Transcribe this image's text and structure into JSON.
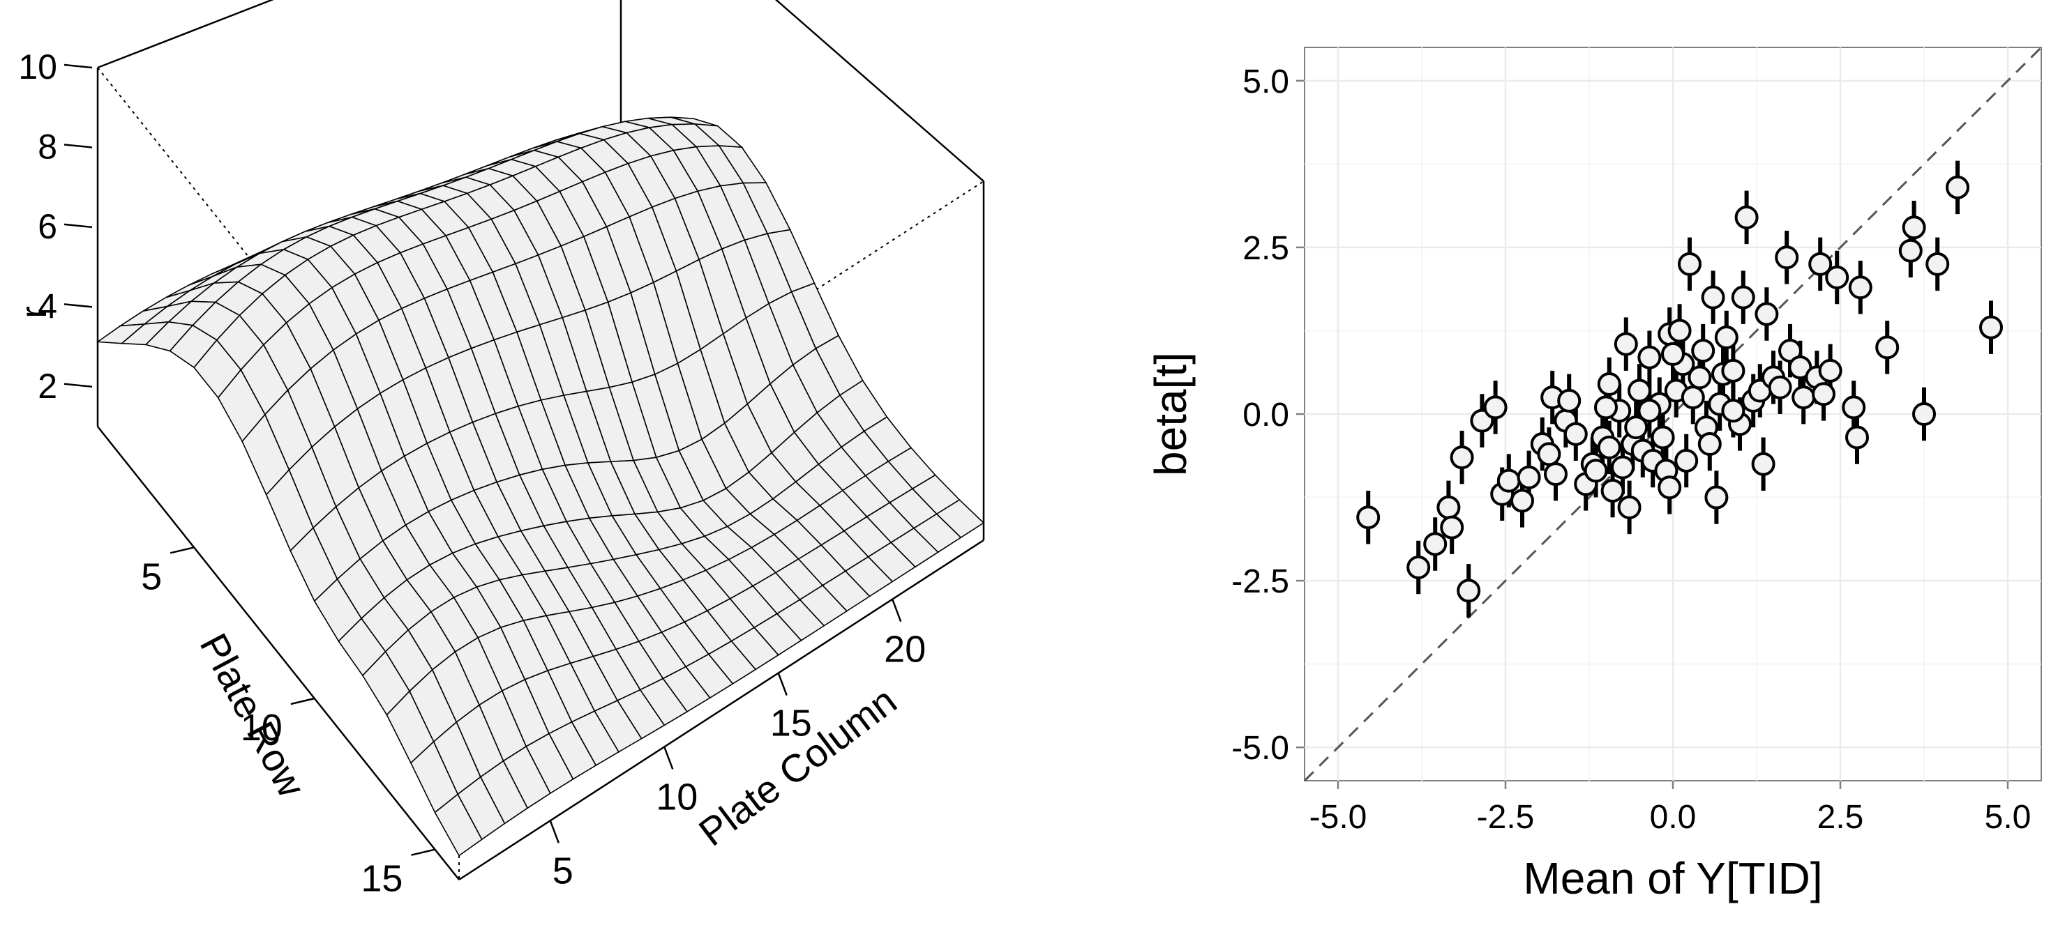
{
  "colors": {
    "surface_fill": "#f0f0f0",
    "panel_background": "#ffffff",
    "grid_major": "#ebebeb",
    "grid_minor": "#f5f5f5",
    "point_fill": "#f2f2f2",
    "point_stroke": "#000000",
    "identity_line": "#555555"
  },
  "chart_data": [
    {
      "type": "surface",
      "zlabel": "r",
      "xlabel": "Plate Row",
      "ylabel": "Plate Column",
      "row_ticks": [
        "5",
        "10",
        "15"
      ],
      "col_ticks": [
        "5",
        "10",
        "15",
        "20"
      ],
      "z_ticks": [
        "2",
        "4",
        "6",
        "8",
        "10"
      ],
      "rows": 16,
      "cols": 24,
      "zlim": [
        1,
        10
      ]
    },
    {
      "type": "scatter",
      "xlabel": "Mean of Y[TID]",
      "ylabel": "beta[t]",
      "xlim": [
        -5.5,
        5.5
      ],
      "ylim": [
        -5.5,
        5.5
      ],
      "x_ticks": [
        "-5.0",
        "-2.5",
        "0.0",
        "2.5",
        "5.0"
      ],
      "y_ticks": [
        "-5.0",
        "-2.5",
        "0.0",
        "2.5",
        "5.0"
      ],
      "reference_line": "y = x (dashed)",
      "error_bar_half_width": 0.4,
      "points": [
        [
          -4.55,
          -1.55
        ],
        [
          -3.8,
          -2.3
        ],
        [
          -3.55,
          -1.95
        ],
        [
          -3.35,
          -1.4
        ],
        [
          -3.3,
          -1.7
        ],
        [
          -3.15,
          -0.65
        ],
        [
          -3.05,
          -2.65
        ],
        [
          -2.85,
          -0.1
        ],
        [
          -2.65,
          0.1
        ],
        [
          -2.55,
          -1.2
        ],
        [
          -2.45,
          -1.0
        ],
        [
          -2.25,
          -1.3
        ],
        [
          -2.15,
          -0.95
        ],
        [
          -1.95,
          -0.45
        ],
        [
          -1.85,
          -0.6
        ],
        [
          -1.8,
          0.25
        ],
        [
          -1.75,
          -0.9
        ],
        [
          -1.6,
          -0.1
        ],
        [
          -1.55,
          0.2
        ],
        [
          -1.45,
          -0.3
        ],
        [
          -1.3,
          -1.05
        ],
        [
          -1.2,
          -0.75
        ],
        [
          -1.15,
          -0.85
        ],
        [
          -1.05,
          -0.35
        ],
        [
          -0.95,
          -0.5
        ],
        [
          -0.95,
          0.45
        ],
        [
          -0.9,
          -1.15
        ],
        [
          -0.8,
          0.05
        ],
        [
          -0.75,
          -0.8
        ],
        [
          -0.7,
          1.05
        ],
        [
          -0.65,
          -1.4
        ],
        [
          -0.6,
          -0.45
        ],
        [
          -0.55,
          -0.2
        ],
        [
          -0.45,
          -0.55
        ],
        [
          -0.35,
          0.85
        ],
        [
          -0.3,
          -0.7
        ],
        [
          -0.2,
          0.15
        ],
        [
          -0.15,
          -0.35
        ],
        [
          -0.1,
          -0.85
        ],
        [
          -0.05,
          -1.1
        ],
        [
          -0.05,
          1.2
        ],
        [
          0.05,
          0.35
        ],
        [
          0.1,
          1.25
        ],
        [
          0.15,
          0.75
        ],
        [
          0.2,
          -0.7
        ],
        [
          0.25,
          2.25
        ],
        [
          0.3,
          0.25
        ],
        [
          0.4,
          0.55
        ],
        [
          0.45,
          0.95
        ],
        [
          0.5,
          -0.2
        ],
        [
          0.55,
          -0.45
        ],
        [
          0.65,
          -1.25
        ],
        [
          0.7,
          0.15
        ],
        [
          0.75,
          0.6
        ],
        [
          0.8,
          1.15
        ],
        [
          0.9,
          0.65
        ],
        [
          1.05,
          1.75
        ],
        [
          1.1,
          2.95
        ],
        [
          1.2,
          0.2
        ],
        [
          1.3,
          0.35
        ],
        [
          1.35,
          -0.75
        ],
        [
          1.4,
          1.5
        ],
        [
          1.5,
          0.55
        ],
        [
          1.6,
          0.4
        ],
        [
          1.7,
          2.35
        ],
        [
          1.75,
          0.95
        ],
        [
          1.9,
          0.7
        ],
        [
          1.95,
          0.25
        ],
        [
          2.15,
          0.55
        ],
        [
          2.2,
          2.25
        ],
        [
          2.25,
          0.3
        ],
        [
          2.35,
          0.65
        ],
        [
          2.45,
          2.05
        ],
        [
          2.7,
          0.1
        ],
        [
          2.75,
          -0.35
        ],
        [
          2.8,
          1.9
        ],
        [
          3.2,
          1.0
        ],
        [
          3.55,
          2.45
        ],
        [
          3.6,
          2.8
        ],
        [
          3.75,
          -0.0
        ],
        [
          3.95,
          2.25
        ],
        [
          4.25,
          3.4
        ],
        [
          4.75,
          1.3
        ],
        [
          1.0,
          -0.15
        ],
        [
          -0.35,
          0.05
        ],
        [
          0.6,
          1.75
        ],
        [
          -1.0,
          0.1
        ],
        [
          0.9,
          0.05
        ],
        [
          0.0,
          0.9
        ],
        [
          -0.5,
          0.35
        ]
      ]
    }
  ]
}
